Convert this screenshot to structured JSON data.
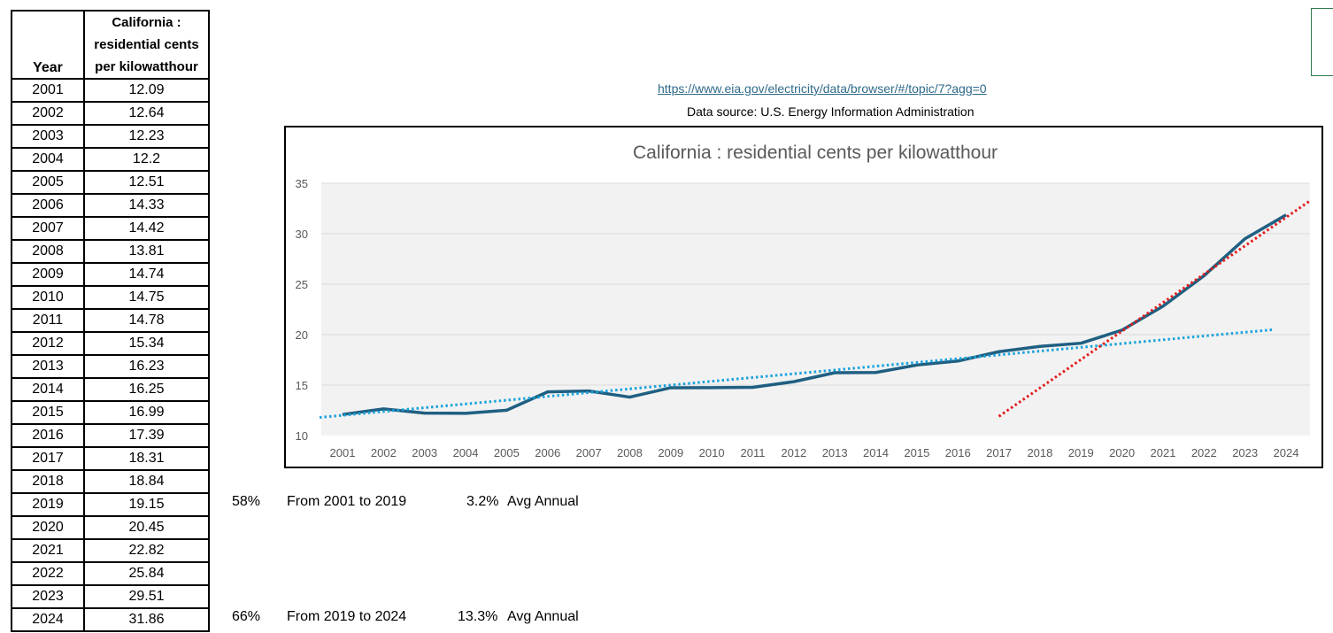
{
  "table": {
    "header_year": "Year",
    "header_value_lines": [
      "California :",
      "residential cents",
      "per kilowatthour"
    ],
    "rows": [
      {
        "year": "2001",
        "value": "12.09"
      },
      {
        "year": "2002",
        "value": "12.64"
      },
      {
        "year": "2003",
        "value": "12.23"
      },
      {
        "year": "2004",
        "value": "12.2"
      },
      {
        "year": "2005",
        "value": "12.51"
      },
      {
        "year": "2006",
        "value": "14.33"
      },
      {
        "year": "2007",
        "value": "14.42"
      },
      {
        "year": "2008",
        "value": "13.81"
      },
      {
        "year": "2009",
        "value": "14.74"
      },
      {
        "year": "2010",
        "value": "14.75"
      },
      {
        "year": "2011",
        "value": "14.78"
      },
      {
        "year": "2012",
        "value": "15.34"
      },
      {
        "year": "2013",
        "value": "16.23"
      },
      {
        "year": "2014",
        "value": "16.25"
      },
      {
        "year": "2015",
        "value": "16.99"
      },
      {
        "year": "2016",
        "value": "17.39"
      },
      {
        "year": "2017",
        "value": "18.31"
      },
      {
        "year": "2018",
        "value": "18.84"
      },
      {
        "year": "2019",
        "value": "19.15"
      },
      {
        "year": "2020",
        "value": "20.45"
      },
      {
        "year": "2021",
        "value": "22.82"
      },
      {
        "year": "2022",
        "value": "25.84"
      },
      {
        "year": "2023",
        "value": "29.51"
      },
      {
        "year": "2024",
        "value": "31.86"
      }
    ]
  },
  "source": {
    "url": "https://www.eia.gov/electricity/data/browser/#/topic/7?agg=0",
    "text": "Data source: U.S. Energy Information Administration"
  },
  "summary": {
    "row1": {
      "pct": "58%",
      "range": "From 2001 to 2019",
      "avg": "3.2%",
      "avg_label": "Avg Annual"
    },
    "row2": {
      "pct": "66%",
      "range": "From 2019 to 2024",
      "avg": "13.3%",
      "avg_label": "Avg Annual"
    }
  },
  "chart_data": {
    "type": "line",
    "title": "California : residential cents per kilowatthour",
    "x": [
      "2001",
      "2002",
      "2003",
      "2004",
      "2005",
      "2006",
      "2007",
      "2008",
      "2009",
      "2010",
      "2011",
      "2012",
      "2013",
      "2014",
      "2015",
      "2016",
      "2017",
      "2018",
      "2019",
      "2020",
      "2021",
      "2022",
      "2023",
      "2024"
    ],
    "series": [
      {
        "values": [
          12.09,
          12.64,
          12.23,
          12.2,
          12.51,
          14.33,
          14.42,
          13.81,
          14.74,
          14.75,
          14.78,
          15.34,
          16.23,
          16.25,
          16.99,
          17.39,
          18.31,
          18.84,
          19.15,
          20.45,
          22.82,
          25.84,
          29.51,
          31.86
        ],
        "color": "#1f5f82"
      }
    ],
    "trendlines": [
      {
        "style": "dotted",
        "color": "#1aa3dc",
        "from": {
          "x": "2001",
          "y": 11.8
        },
        "to": {
          "x": "2024",
          "y": 20.5
        }
      },
      {
        "style": "dotted",
        "color": "#e31a1a",
        "from": {
          "x": "2017",
          "y": 11.9
        },
        "to": {
          "x": "2024",
          "y": 31.8
        }
      }
    ],
    "ylim": [
      10,
      35
    ],
    "yticks": [
      10,
      15,
      20,
      25,
      30,
      35
    ],
    "grid": true,
    "plot_background": "#f2f2f2",
    "xlabel": "",
    "ylabel": ""
  }
}
